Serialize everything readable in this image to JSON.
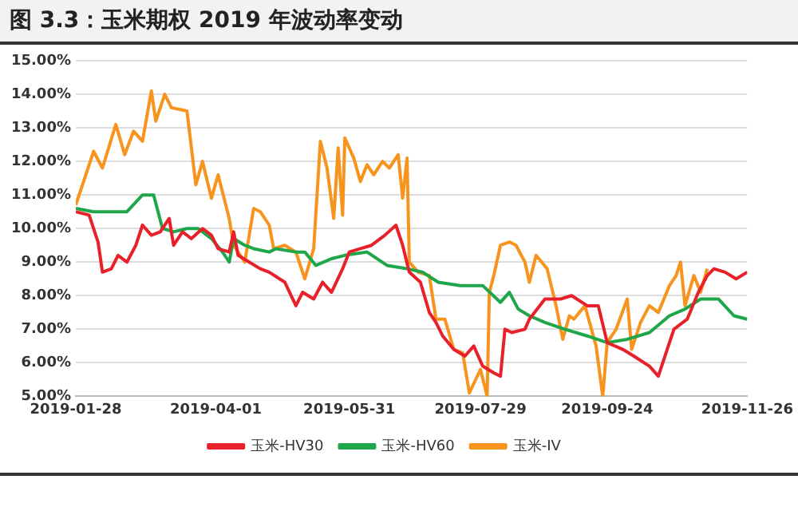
{
  "chart_data": {
    "type": "line",
    "title": "图 3.3：玉米期权 2019 年波动率变动",
    "ylim": [
      5,
      15
    ],
    "yticks": [
      {
        "value": 5,
        "label": "5.00%"
      },
      {
        "value": 6,
        "label": "6.00%"
      },
      {
        "value": 7,
        "label": "7.00%"
      },
      {
        "value": 8,
        "label": "8.00%"
      },
      {
        "value": 9,
        "label": "9.00%"
      },
      {
        "value": 10,
        "label": "10.00%"
      },
      {
        "value": 11,
        "label": "11.00%"
      },
      {
        "value": 12,
        "label": "12.00%"
      },
      {
        "value": 13,
        "label": "13.00%"
      },
      {
        "value": 14,
        "label": "14.00%"
      },
      {
        "value": 15,
        "label": "15.00%"
      }
    ],
    "xlim": [
      "2019-01-28",
      "2019-11-26"
    ],
    "xticks": [
      "2019-01-28",
      "2019-04-01",
      "2019-05-31",
      "2019-07-29",
      "2019-09-24",
      "2019-11-26"
    ],
    "grid": "y",
    "legend": "bottom",
    "marker": "none",
    "line_style": "solid",
    "series": [
      {
        "name": "玉米-HV30",
        "color": "#e8202a",
        "x": [
          "2019-01-28",
          "2019-02-03",
          "2019-02-07",
          "2019-02-09",
          "2019-02-13",
          "2019-02-16",
          "2019-02-20",
          "2019-02-24",
          "2019-02-27",
          "2019-03-03",
          "2019-03-07",
          "2019-03-11",
          "2019-03-13",
          "2019-03-17",
          "2019-03-21",
          "2019-03-26",
          "2019-03-30",
          "2019-04-02",
          "2019-04-07",
          "2019-04-09",
          "2019-04-11",
          "2019-04-16",
          "2019-04-21",
          "2019-04-25",
          "2019-05-02",
          "2019-05-07",
          "2019-05-10",
          "2019-05-15",
          "2019-05-19",
          "2019-05-23",
          "2019-05-28",
          "2019-05-31",
          "2019-06-05",
          "2019-06-10",
          "2019-06-16",
          "2019-06-21",
          "2019-06-24",
          "2019-06-27",
          "2019-07-02",
          "2019-07-06",
          "2019-07-09",
          "2019-07-12",
          "2019-07-17",
          "2019-07-22",
          "2019-07-26",
          "2019-07-30",
          "2019-08-04",
          "2019-08-07",
          "2019-08-09",
          "2019-08-12",
          "2019-08-18",
          "2019-08-20",
          "2019-08-27",
          "2019-09-03",
          "2019-09-08",
          "2019-09-15",
          "2019-09-20",
          "2019-09-24",
          "2019-10-01",
          "2019-10-06",
          "2019-10-13",
          "2019-10-17",
          "2019-10-20",
          "2019-10-24",
          "2019-10-30",
          "2019-11-04",
          "2019-11-08",
          "2019-11-11",
          "2019-11-16",
          "2019-11-21",
          "2019-11-26"
        ],
        "values": [
          10.5,
          10.4,
          9.6,
          8.7,
          8.8,
          9.2,
          9.0,
          9.5,
          10.1,
          9.8,
          9.9,
          10.3,
          9.5,
          9.9,
          9.7,
          10.0,
          9.8,
          9.4,
          9.3,
          9.9,
          9.2,
          9.0,
          8.8,
          8.7,
          8.4,
          7.7,
          8.1,
          7.9,
          8.4,
          8.1,
          8.8,
          9.3,
          9.4,
          9.5,
          9.8,
          10.1,
          9.5,
          8.7,
          8.4,
          7.5,
          7.2,
          6.8,
          6.4,
          6.2,
          6.5,
          5.9,
          5.7,
          5.6,
          7.0,
          6.9,
          7.0,
          7.3,
          7.9,
          7.9,
          8.0,
          7.7,
          7.7,
          6.6,
          6.4,
          6.2,
          5.9,
          5.6,
          6.2,
          7.0,
          7.3,
          8.1,
          8.6,
          8.8,
          8.7,
          8.5,
          8.7
        ]
      },
      {
        "name": "玉米-HV60",
        "color": "#1fa64a",
        "x": [
          "2019-01-28",
          "2019-02-05",
          "2019-02-13",
          "2019-02-20",
          "2019-02-27",
          "2019-03-04",
          "2019-03-08",
          "2019-03-13",
          "2019-03-19",
          "2019-03-24",
          "2019-03-30",
          "2019-04-04",
          "2019-04-07",
          "2019-04-09",
          "2019-04-14",
          "2019-04-18",
          "2019-04-25",
          "2019-04-28",
          "2019-05-07",
          "2019-05-11",
          "2019-05-16",
          "2019-05-23",
          "2019-05-29",
          "2019-06-08",
          "2019-06-17",
          "2019-06-26",
          "2019-07-03",
          "2019-07-10",
          "2019-07-20",
          "2019-07-30",
          "2019-08-07",
          "2019-08-11",
          "2019-08-15",
          "2019-08-20",
          "2019-08-27",
          "2019-09-05",
          "2019-09-15",
          "2019-09-24",
          "2019-10-03",
          "2019-10-13",
          "2019-10-22",
          "2019-10-29",
          "2019-11-05",
          "2019-11-13",
          "2019-11-20",
          "2019-11-26"
        ],
        "values": [
          10.6,
          10.5,
          10.5,
          10.5,
          11.0,
          11.0,
          10.0,
          9.9,
          10.0,
          10.0,
          9.7,
          9.3,
          9.0,
          9.7,
          9.5,
          9.4,
          9.3,
          9.4,
          9.3,
          9.3,
          8.9,
          9.1,
          9.2,
          9.3,
          8.9,
          8.8,
          8.7,
          8.4,
          8.3,
          8.3,
          7.8,
          8.1,
          7.6,
          7.4,
          7.2,
          7.0,
          6.8,
          6.6,
          6.7,
          6.9,
          7.4,
          7.6,
          7.9,
          7.9,
          7.4,
          7.3
        ]
      },
      {
        "name": "玉米-IV",
        "color": "#f7941d",
        "x": [
          "2019-01-28",
          "2019-02-05",
          "2019-02-09",
          "2019-02-15",
          "2019-02-19",
          "2019-02-23",
          "2019-02-27",
          "2019-03-03",
          "2019-03-05",
          "2019-03-09",
          "2019-03-12",
          "2019-03-19",
          "2019-03-23",
          "2019-03-26",
          "2019-03-30",
          "2019-04-02",
          "2019-04-07",
          "2019-04-09",
          "2019-04-14",
          "2019-04-18",
          "2019-04-21",
          "2019-04-25",
          "2019-04-27",
          "2019-05-02",
          "2019-05-07",
          "2019-05-11",
          "2019-05-15",
          "2019-05-18",
          "2019-05-21",
          "2019-05-24",
          "2019-05-26",
          "2019-05-28",
          "2019-05-29",
          "2019-06-02",
          "2019-06-05",
          "2019-06-08",
          "2019-06-11",
          "2019-06-15",
          "2019-06-18",
          "2019-06-22",
          "2019-06-24",
          "2019-06-26",
          "2019-06-27",
          "2019-07-01",
          "2019-07-06",
          "2019-07-09",
          "2019-07-13",
          "2019-07-17",
          "2019-07-21",
          "2019-07-24",
          "2019-07-29",
          "2019-08-01",
          "2019-08-02",
          "2019-08-04",
          "2019-08-07",
          "2019-08-11",
          "2019-08-14",
          "2019-08-18",
          "2019-08-20",
          "2019-08-23",
          "2019-08-28",
          "2019-09-01",
          "2019-09-04",
          "2019-09-07",
          "2019-09-09",
          "2019-09-14",
          "2019-09-19",
          "2019-09-22",
          "2019-09-24",
          "2019-09-28",
          "2019-10-03",
          "2019-10-05",
          "2019-10-09",
          "2019-10-13",
          "2019-10-17",
          "2019-10-22",
          "2019-10-25",
          "2019-10-27",
          "2019-10-29",
          "2019-11-02",
          "2019-11-05",
          "2019-11-08"
        ],
        "values": [
          10.7,
          12.3,
          11.8,
          13.1,
          12.2,
          12.9,
          12.6,
          14.1,
          13.2,
          14.0,
          13.6,
          13.5,
          11.3,
          12.0,
          10.9,
          11.6,
          10.3,
          9.5,
          9.0,
          10.6,
          10.5,
          10.1,
          9.4,
          9.5,
          9.3,
          8.5,
          9.4,
          12.6,
          11.8,
          10.3,
          12.4,
          10.4,
          12.7,
          12.1,
          11.4,
          11.9,
          11.6,
          12.0,
          11.8,
          12.2,
          10.9,
          12.1,
          9.0,
          8.7,
          8.6,
          7.3,
          7.3,
          6.4,
          6.3,
          5.1,
          5.8,
          5.0,
          8.1,
          8.6,
          9.5,
          9.6,
          9.5,
          9.0,
          8.4,
          9.2,
          8.8,
          7.7,
          6.7,
          7.4,
          7.3,
          7.7,
          6.5,
          5.0,
          6.6,
          7.0,
          7.9,
          6.4,
          7.2,
          7.7,
          7.5,
          8.3,
          8.6,
          9.0,
          7.7,
          8.6,
          8.1,
          8.8
        ]
      }
    ]
  }
}
